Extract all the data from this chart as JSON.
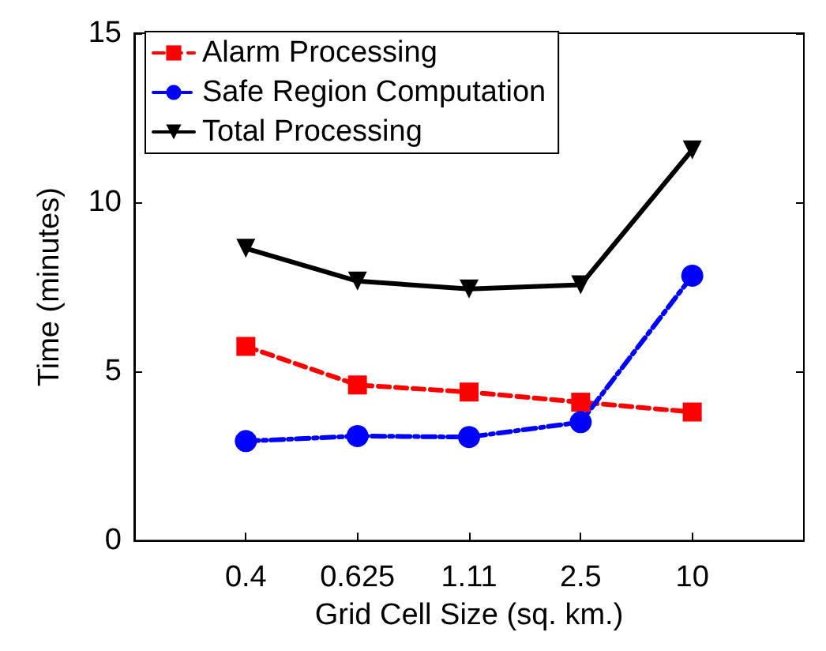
{
  "chart_data": {
    "type": "line",
    "xlabel": "Grid Cell Size (sq. km.)",
    "ylabel": "Time (minutes)",
    "categories": [
      "0.4",
      "0.625",
      "1.11",
      "2.5",
      "10"
    ],
    "ylim": [
      0,
      15
    ],
    "yticks": [
      0,
      5,
      10,
      15
    ],
    "grid": false,
    "legend": "top left",
    "series": [
      {
        "name": "Alarm Processing",
        "color": "#ff0000",
        "marker": "square",
        "line_style": "dashed",
        "values": [
          5.74,
          4.6,
          4.39,
          4.09,
          3.8
        ]
      },
      {
        "name": "Safe Region Computation",
        "color": "#0000ff",
        "marker": "circle",
        "line_style": "dashdot",
        "values": [
          2.94,
          3.09,
          3.06,
          3.5,
          7.83
        ]
      },
      {
        "name": "Total Processing",
        "color": "#000000",
        "marker": "triangle-down",
        "line_style": "solid",
        "values": [
          8.64,
          7.67,
          7.44,
          7.56,
          11.55
        ]
      }
    ]
  }
}
